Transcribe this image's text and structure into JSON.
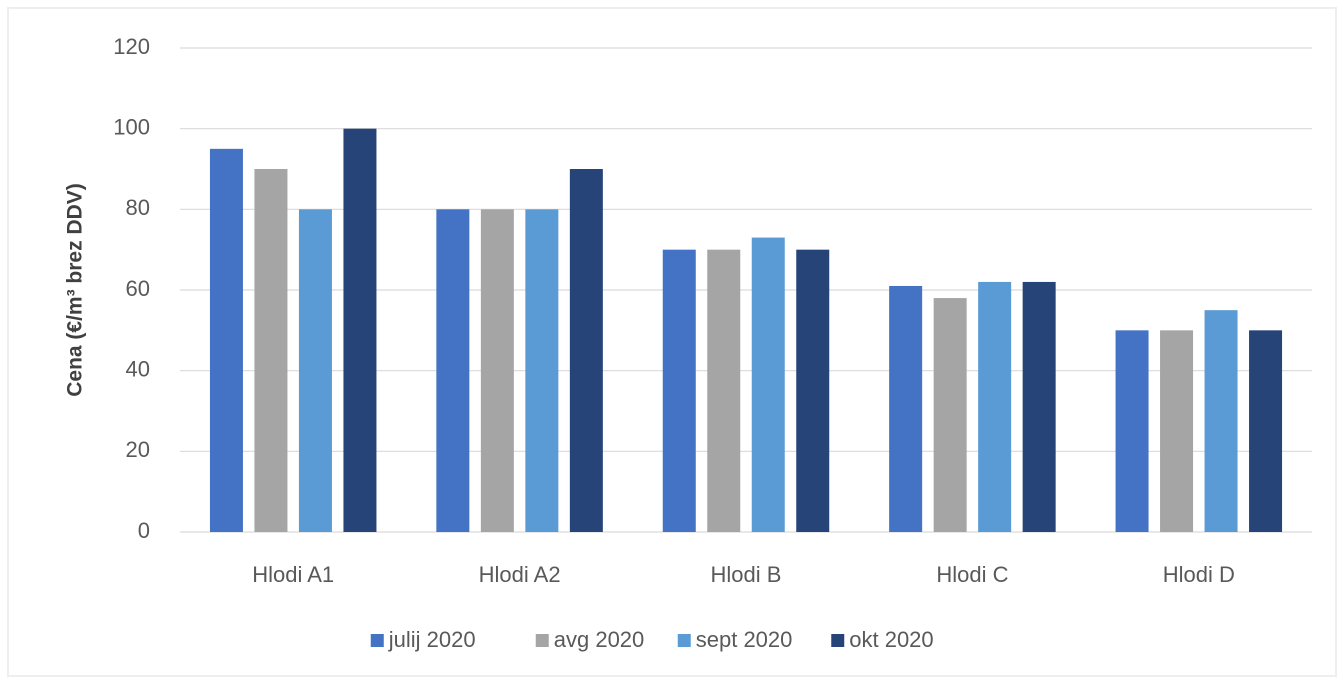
{
  "chart_data": {
    "type": "bar",
    "y_label": "Cena (€/m³ brez DDV)",
    "categories": [
      "Hlodi A1",
      "Hlodi A2",
      "Hlodi B",
      "Hlodi C",
      "Hlodi D"
    ],
    "series": [
      {
        "name": "julij 2020",
        "color": "#4472c4",
        "values": [
          95,
          80,
          70,
          61,
          50
        ]
      },
      {
        "name": "avg 2020",
        "color": "#a5a5a5",
        "values": [
          90,
          80,
          70,
          58,
          50
        ]
      },
      {
        "name": "sept 2020",
        "color": "#5b9bd5",
        "values": [
          80,
          80,
          73,
          62,
          55
        ]
      },
      {
        "name": "okt 2020",
        "color": "#264478",
        "values": [
          100,
          90,
          70,
          62,
          50
        ]
      }
    ],
    "ylim": [
      0,
      120
    ],
    "yticks": [
      0,
      20,
      40,
      60,
      80,
      100,
      120
    ],
    "grid": true,
    "legend": "bottom"
  }
}
